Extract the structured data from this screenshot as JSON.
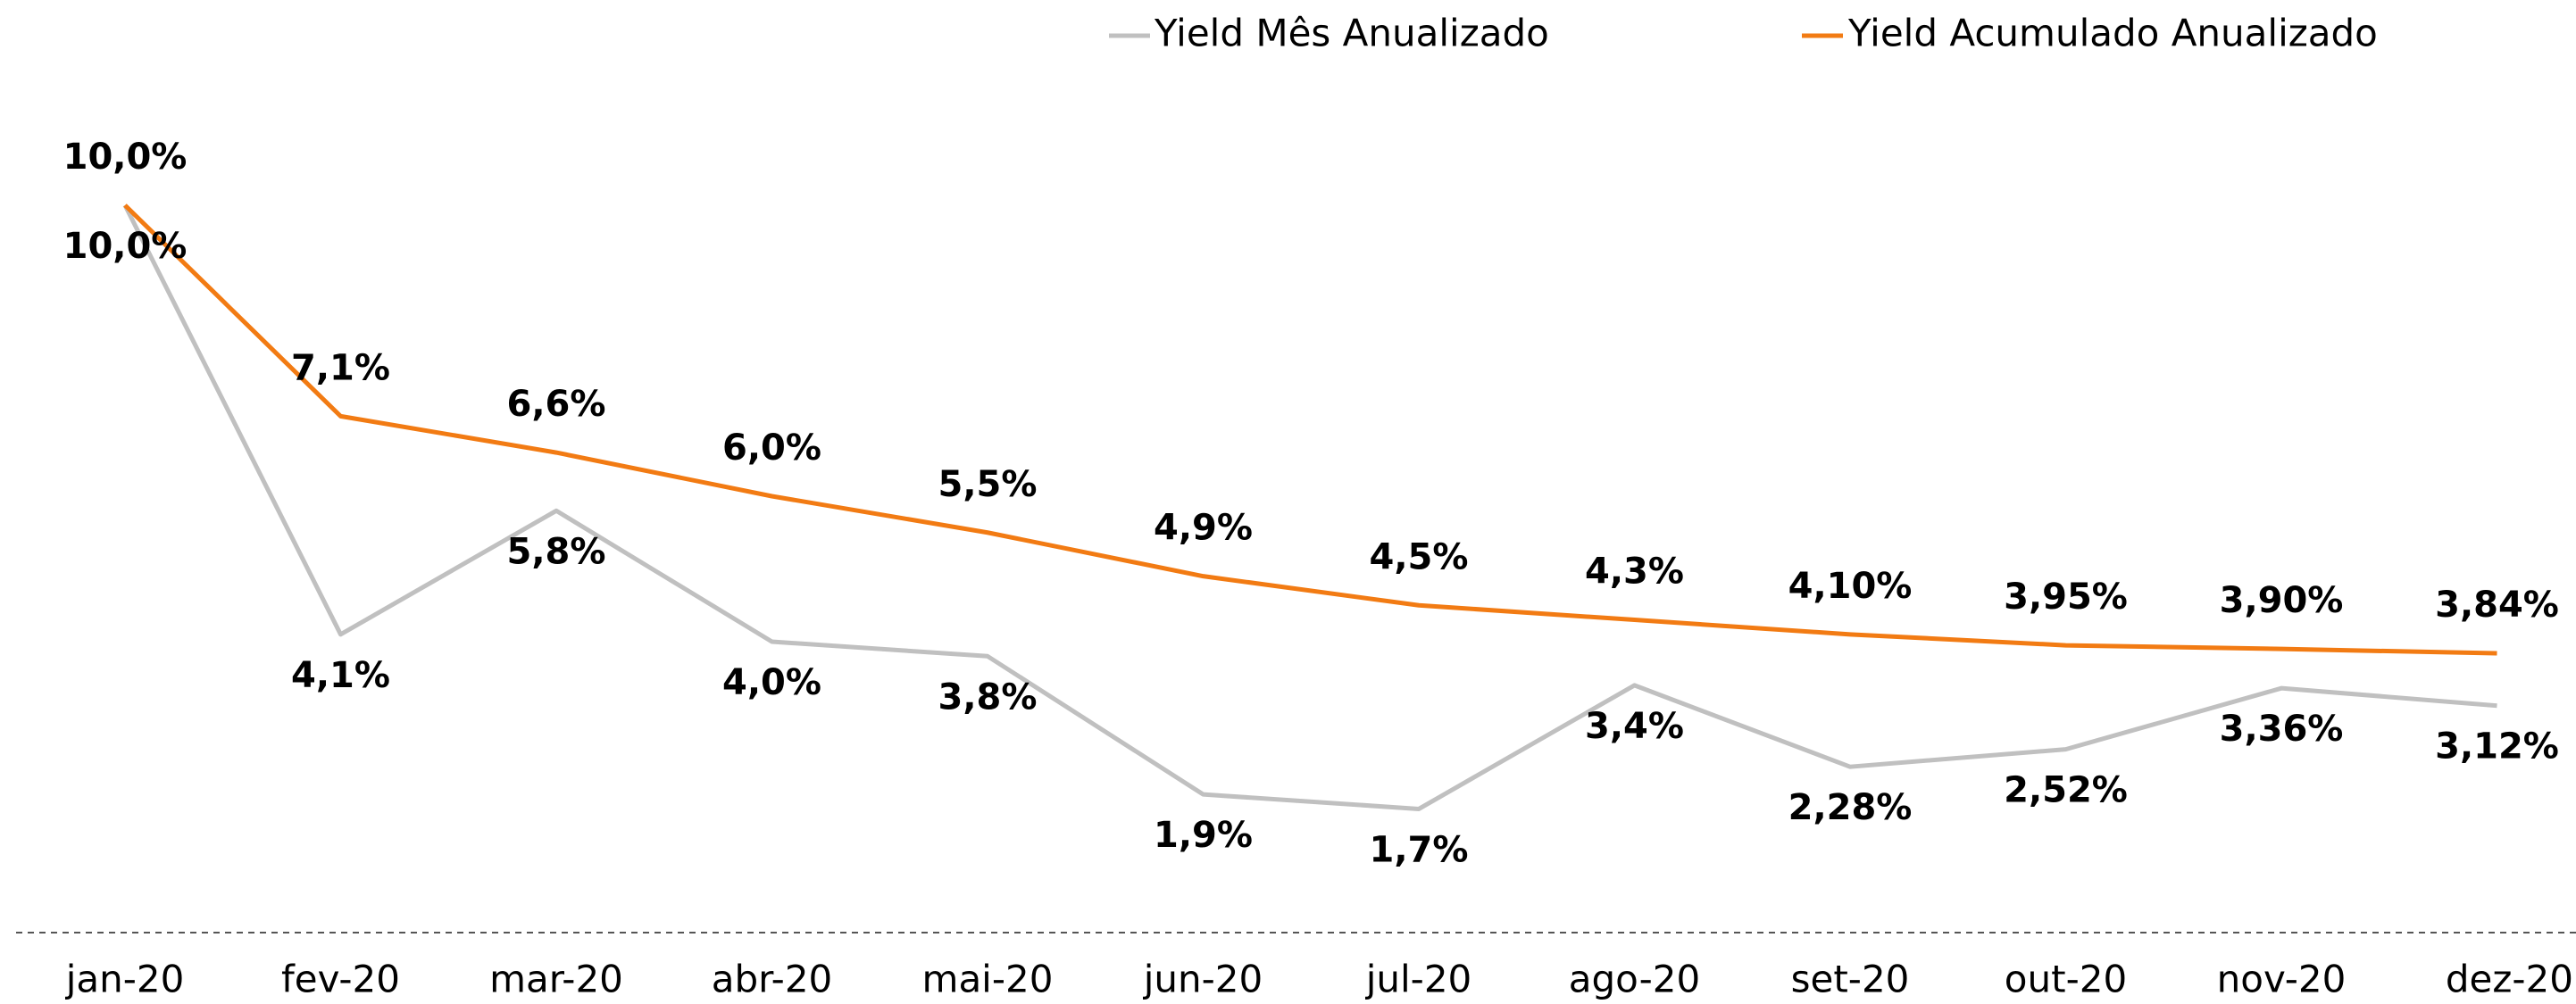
{
  "chart_data": {
    "type": "line",
    "categories": [
      "jan-20",
      "fev-20",
      "mar-20",
      "abr-20",
      "mai-20",
      "jun-20",
      "jul-20",
      "ago-20",
      "set-20",
      "out-20",
      "nov-20",
      "dez-20"
    ],
    "series": [
      {
        "name": "Yield Mês Anualizado",
        "color": "#c0c0c0",
        "values": [
          10.0,
          4.1,
          5.8,
          4.0,
          3.8,
          1.9,
          1.7,
          3.4,
          2.28,
          2.52,
          3.36,
          3.12
        ],
        "value_labels": [
          "10,0%",
          "4,1%",
          "5,8%",
          "4,0%",
          "3,8%",
          "1,9%",
          "1,7%",
          "3,4%",
          "2,28%",
          "2,52%",
          "3,36%",
          "3,12%"
        ]
      },
      {
        "name": "Yield Acumulado Anualizado",
        "color": "#f27b13",
        "values": [
          10.0,
          7.1,
          6.6,
          6.0,
          5.5,
          4.9,
          4.5,
          4.3,
          4.1,
          3.95,
          3.9,
          3.84
        ],
        "value_labels": [
          "10,0%",
          "7,1%",
          "6,6%",
          "6,0%",
          "5,5%",
          "4,9%",
          "4,5%",
          "4,3%",
          "4,10%",
          "3,95%",
          "3,90%",
          "3,84%"
        ]
      }
    ]
  }
}
